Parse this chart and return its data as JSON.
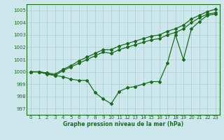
{
  "xlabel": "Graphe pression niveau de la mer (hPa)",
  "background_color": "#cce8ec",
  "grid_color": "#aacccc",
  "line_color": "#1a6b1a",
  "xlim": [
    -0.5,
    23.5
  ],
  "ylim": [
    996.5,
    1005.5
  ],
  "yticks": [
    997,
    998,
    999,
    1000,
    1001,
    1002,
    1003,
    1004,
    1005
  ],
  "xticks": [
    0,
    1,
    2,
    3,
    4,
    5,
    6,
    7,
    8,
    9,
    10,
    11,
    12,
    13,
    14,
    15,
    16,
    17,
    18,
    19,
    20,
    21,
    22,
    23
  ],
  "series_low": [
    1000.0,
    1000.0,
    999.8,
    999.7,
    999.6,
    999.4,
    999.3,
    999.3,
    998.3,
    997.8,
    997.4,
    998.4,
    998.7,
    998.8,
    999.0,
    999.2,
    999.2,
    1000.7,
    1003.0,
    1001.0,
    1003.5,
    1004.1,
    1004.6,
    1004.7
  ],
  "series_mid": [
    1000.0,
    1000.0,
    999.9,
    999.7,
    1000.1,
    1000.4,
    1000.7,
    1001.0,
    1001.3,
    1001.6,
    1001.5,
    1001.8,
    1002.0,
    1002.2,
    1002.4,
    1002.6,
    1002.7,
    1003.0,
    1003.2,
    1003.5,
    1004.0,
    1004.4,
    1004.7,
    1004.8
  ],
  "series_high": [
    1000.0,
    1000.0,
    999.9,
    999.8,
    1000.2,
    1000.5,
    1000.9,
    1001.2,
    1001.5,
    1001.8,
    1001.8,
    1002.1,
    1002.3,
    1002.5,
    1002.7,
    1002.9,
    1003.0,
    1003.3,
    1003.5,
    1003.8,
    1004.3,
    1004.6,
    1004.9,
    1005.1
  ]
}
